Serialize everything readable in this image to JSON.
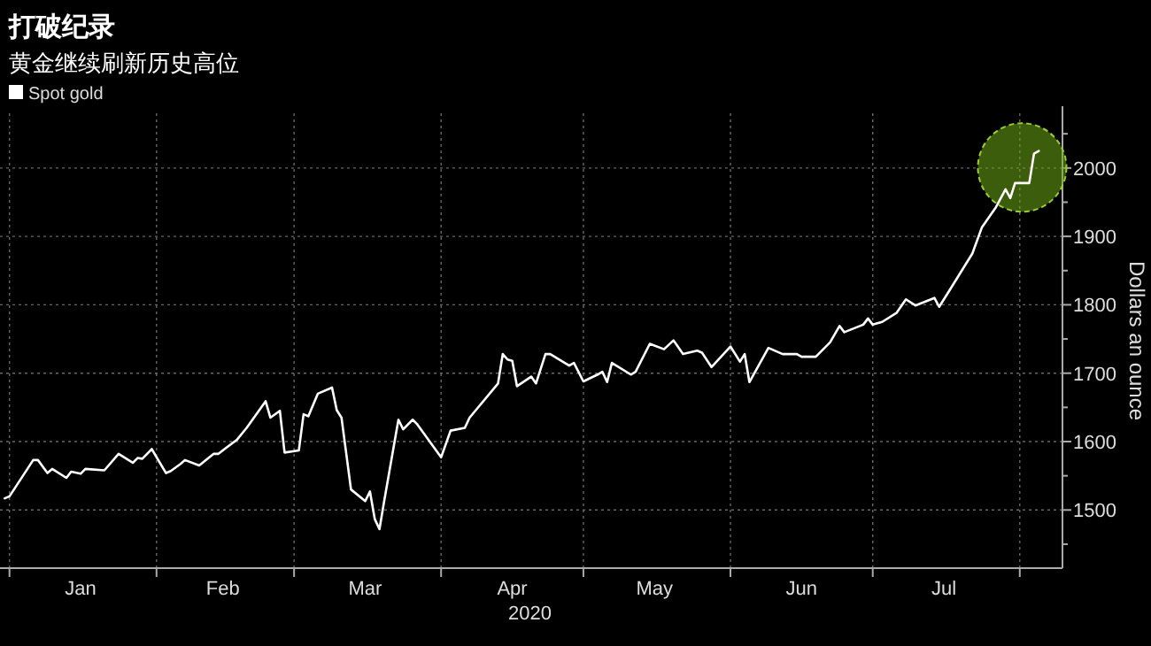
{
  "chart_data": {
    "type": "line",
    "title": "打破纪录",
    "subtitle": "黄金继续刷新历史高位",
    "xlabel": "2020",
    "ylabel": "Dollars an ounce",
    "xlim": [
      "2019-12-30",
      "2020-08-10"
    ],
    "ylim": [
      1415,
      2080
    ],
    "xticks": [
      {
        "value": "2020-01-01",
        "label": null
      },
      {
        "value": "2020-01-16",
        "label": "Jan"
      },
      {
        "value": "2020-02-01",
        "label": null
      },
      {
        "value": "2020-02-15",
        "label": "Feb"
      },
      {
        "value": "2020-03-01",
        "label": null
      },
      {
        "value": "2020-03-16",
        "label": "Mar"
      },
      {
        "value": "2020-04-01",
        "label": null
      },
      {
        "value": "2020-04-16",
        "label": "Apr"
      },
      {
        "value": "2020-05-01",
        "label": null
      },
      {
        "value": "2020-05-16",
        "label": "May"
      },
      {
        "value": "2020-06-01",
        "label": null
      },
      {
        "value": "2020-06-16",
        "label": "Jun"
      },
      {
        "value": "2020-07-01",
        "label": null
      },
      {
        "value": "2020-07-16",
        "label": "Jul"
      },
      {
        "value": "2020-08-01",
        "label": null
      }
    ],
    "yticks": [
      {
        "value": 1450,
        "label": null
      },
      1500,
      {
        "value": 1550,
        "label": null
      },
      1600,
      {
        "value": 1650,
        "label": null
      },
      1700,
      {
        "value": 1750,
        "label": null
      },
      1800,
      {
        "value": 1850,
        "label": null
      },
      1900,
      {
        "value": 1950,
        "label": null
      },
      2000,
      {
        "value": 2050,
        "label": null
      }
    ],
    "grid": true,
    "legend": "top left",
    "marker": "none",
    "line_style": "solid",
    "series": [
      {
        "name": "Spot gold",
        "color": "#ffffff",
        "x": [
          "2019-12-31",
          "2020-01-01",
          "2020-01-06",
          "2020-01-07",
          "2020-01-09",
          "2020-01-10",
          "2020-01-13",
          "2020-01-14",
          "2020-01-16",
          "2020-01-17",
          "2020-01-21",
          "2020-01-24",
          "2020-01-27",
          "2020-01-28",
          "2020-01-29",
          "2020-01-31",
          "2020-02-03",
          "2020-02-04",
          "2020-02-06",
          "2020-02-07",
          "2020-02-10",
          "2020-02-13",
          "2020-02-14",
          "2020-02-18",
          "2020-02-20",
          "2020-02-24",
          "2020-02-25",
          "2020-02-27",
          "2020-02-28",
          "2020-03-02",
          "2020-03-03",
          "2020-03-04",
          "2020-03-06",
          "2020-03-09",
          "2020-03-10",
          "2020-03-11",
          "2020-03-13",
          "2020-03-16",
          "2020-03-17",
          "2020-03-18",
          "2020-03-19",
          "2020-03-20",
          "2020-03-23",
          "2020-03-24",
          "2020-03-26",
          "2020-03-27",
          "2020-04-01",
          "2020-04-03",
          "2020-04-06",
          "2020-04-07",
          "2020-04-13",
          "2020-04-14",
          "2020-04-15",
          "2020-04-16",
          "2020-04-17",
          "2020-04-20",
          "2020-04-21",
          "2020-04-23",
          "2020-04-24",
          "2020-04-28",
          "2020-04-29",
          "2020-05-01",
          "2020-05-04",
          "2020-05-05",
          "2020-05-06",
          "2020-05-07",
          "2020-05-11",
          "2020-05-12",
          "2020-05-15",
          "2020-05-18",
          "2020-05-20",
          "2020-05-22",
          "2020-05-25",
          "2020-05-26",
          "2020-05-28",
          "2020-06-01",
          "2020-06-03",
          "2020-06-04",
          "2020-06-05",
          "2020-06-09",
          "2020-06-12",
          "2020-06-15",
          "2020-06-16",
          "2020-06-19",
          "2020-06-22",
          "2020-06-24",
          "2020-06-25",
          "2020-06-29",
          "2020-06-30",
          "2020-07-01",
          "2020-07-03",
          "2020-07-06",
          "2020-07-08",
          "2020-07-10",
          "2020-07-14",
          "2020-07-15",
          "2020-07-17",
          "2020-07-22",
          "2020-07-24",
          "2020-07-27",
          "2020-07-29",
          "2020-07-30",
          "2020-07-31",
          "2020-08-03",
          "2020-08-04",
          "2020-08-05"
        ],
        "values": [
          1517,
          1520,
          1573,
          1573,
          1554,
          1560,
          1547,
          1556,
          1553,
          1560,
          1558,
          1582,
          1569,
          1576,
          1575,
          1589,
          1554,
          1557,
          1567,
          1573,
          1565,
          1582,
          1582,
          1603,
          1620,
          1659,
          1635,
          1645,
          1584,
          1587,
          1640,
          1637,
          1670,
          1679,
          1646,
          1635,
          1530,
          1513,
          1527,
          1487,
          1472,
          1513,
          1632,
          1618,
          1632,
          1625,
          1577,
          1616,
          1620,
          1635,
          1685,
          1728,
          1720,
          1718,
          1681,
          1695,
          1685,
          1728,
          1728,
          1711,
          1715,
          1688,
          1698,
          1702,
          1687,
          1715,
          1698,
          1702,
          1743,
          1735,
          1748,
          1728,
          1733,
          1730,
          1709,
          1739,
          1717,
          1728,
          1687,
          1737,
          1728,
          1728,
          1724,
          1724,
          1745,
          1769,
          1760,
          1771,
          1780,
          1771,
          1775,
          1788,
          1808,
          1799,
          1810,
          1797,
          1819,
          1875,
          1913,
          1943,
          1969,
          1956,
          1978,
          1978,
          2021,
          2025
        ]
      }
    ]
  }
}
